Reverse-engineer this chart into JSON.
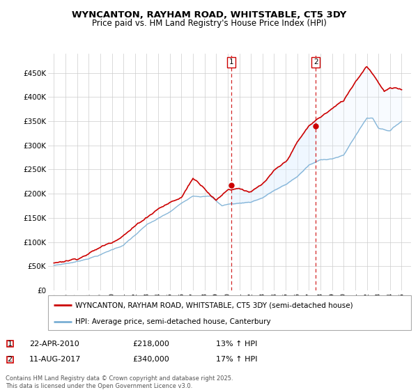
{
  "title": "WYNCANTON, RAYHAM ROAD, WHITSTABLE, CT5 3DY",
  "subtitle": "Price paid vs. HM Land Registry's House Price Index (HPI)",
  "legend_entry1": "WYNCANTON, RAYHAM ROAD, WHITSTABLE, CT5 3DY (semi-detached house)",
  "legend_entry2": "HPI: Average price, semi-detached house, Canterbury",
  "footnote": "Contains HM Land Registry data © Crown copyright and database right 2025.\nThis data is licensed under the Open Government Licence v3.0.",
  "marker1_label": "1",
  "marker1_date": "22-APR-2010",
  "marker1_price": "£218,000",
  "marker1_hpi": "13% ↑ HPI",
  "marker2_label": "2",
  "marker2_date": "11-AUG-2017",
  "marker2_price": "£340,000",
  "marker2_hpi": "17% ↑ HPI",
  "color_red": "#cc0000",
  "color_blue": "#7aafd4",
  "color_vline": "#cc0000",
  "color_fill": "#ddeeff",
  "ylim": [
    0,
    500000
  ],
  "yticks": [
    0,
    50000,
    100000,
    150000,
    200000,
    250000,
    300000,
    350000,
    400000,
    450000
  ],
  "ytick_labels": [
    "£0",
    "£50K",
    "£100K",
    "£150K",
    "£200K",
    "£250K",
    "£300K",
    "£350K",
    "£400K",
    "£450K"
  ],
  "vline1_x": 2010.3,
  "vline2_x": 2017.6,
  "sale1_x": 2010.3,
  "sale1_y": 218000,
  "sale2_x": 2017.6,
  "sale2_y": 340000,
  "xlim_left": 1994.5,
  "xlim_right": 2025.8
}
